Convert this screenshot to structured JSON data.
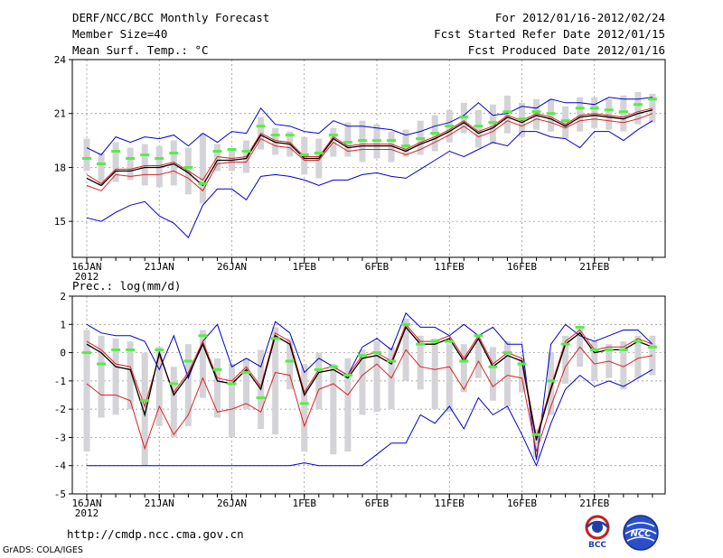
{
  "header": {
    "title": "DERF/NCC/BCC Monthly Forecast",
    "member_size": "Member Size=40",
    "variable": "Mean Surf. Temp.: °C",
    "period": "For 2012/01/16-2012/02/24",
    "refer_date": "Fcst Started Refer Date 2012/01/15",
    "produced_date": "Fcst Produced Date 2012/01/16"
  },
  "footer": {
    "url": "http://cmdp.ncc.cma.gov.cn",
    "credit": "GrADS: COLA/IGES",
    "logo_left_text": "BCC",
    "logo_right_text": "NCC"
  },
  "colors": {
    "envelope": "#0000cc",
    "spread": "#dd2222",
    "ensemble_mean": "#000000",
    "bar": "#d3d3d8",
    "marker": "#55ee44",
    "grid": "#888888"
  },
  "chart_data": [
    {
      "type": "line",
      "id": "temperature",
      "title": "Mean Surf. Temp.: °C",
      "ylim": [
        13.0,
        24.0
      ],
      "yticks": [
        15,
        18,
        21,
        24
      ],
      "xlabels": [
        "16JAN",
        "21JAN",
        "26JAN",
        "1FEB",
        "6FEB",
        "11FEB",
        "16FEB",
        "21FEB"
      ],
      "x_sub": "2012",
      "series": [
        {
          "name": "max",
          "values": [
            19.1,
            18.7,
            19.7,
            19.4,
            19.7,
            19.6,
            19.8,
            19.2,
            19.9,
            19.4,
            20.0,
            19.9,
            21.3,
            20.4,
            20.3,
            20.0,
            19.9,
            20.6,
            20.3,
            20.3,
            20.2,
            20.1,
            19.8,
            20.0,
            20.3,
            20.5,
            20.9,
            21.6,
            20.9,
            21.0,
            21.4,
            21.3,
            21.8,
            21.6,
            21.6,
            21.5,
            21.9,
            21.8,
            21.8,
            21.9
          ]
        },
        {
          "name": "hi",
          "values": [
            17.6,
            17.1,
            17.9,
            17.9,
            18.1,
            18.1,
            18.3,
            17.8,
            17.3,
            18.6,
            18.5,
            18.6,
            19.9,
            19.5,
            19.4,
            18.6,
            18.6,
            19.7,
            19.2,
            19.3,
            19.3,
            19.3,
            19.0,
            19.4,
            19.7,
            20.1,
            20.6,
            20.0,
            20.3,
            20.9,
            20.6,
            21.0,
            20.8,
            20.4,
            20.9,
            21.0,
            20.9,
            20.8,
            21.1,
            21.3
          ]
        },
        {
          "name": "mean",
          "values": [
            17.4,
            17.0,
            17.8,
            17.8,
            18.0,
            18.0,
            18.2,
            17.7,
            17.0,
            18.4,
            18.4,
            18.5,
            19.8,
            19.4,
            19.3,
            18.5,
            18.5,
            19.6,
            19.1,
            19.2,
            19.2,
            19.2,
            18.9,
            19.3,
            19.6,
            20.0,
            20.5,
            19.9,
            20.2,
            20.8,
            20.5,
            20.9,
            20.7,
            20.3,
            20.8,
            20.9,
            20.8,
            20.7,
            21.0,
            21.2
          ]
        },
        {
          "name": "lo",
          "values": [
            17.0,
            16.7,
            17.6,
            17.5,
            17.6,
            17.6,
            17.8,
            17.4,
            16.7,
            18.2,
            18.3,
            18.3,
            19.6,
            19.2,
            19.1,
            18.4,
            18.4,
            19.4,
            18.9,
            19.0,
            19.0,
            19.0,
            18.7,
            19.0,
            19.4,
            19.8,
            20.3,
            19.7,
            20.0,
            20.6,
            20.3,
            20.7,
            20.5,
            20.2,
            20.6,
            20.7,
            20.6,
            20.5,
            20.7,
            21.0
          ]
        },
        {
          "name": "min",
          "values": [
            15.2,
            15.0,
            15.5,
            15.9,
            16.1,
            15.3,
            14.9,
            14.1,
            15.9,
            16.8,
            16.8,
            16.2,
            17.5,
            17.6,
            17.5,
            17.3,
            17.0,
            17.3,
            17.3,
            17.6,
            17.7,
            17.5,
            17.4,
            17.9,
            18.4,
            18.9,
            18.6,
            19.0,
            19.4,
            19.2,
            20.0,
            20.0,
            19.7,
            19.6,
            19.1,
            20.0,
            20.0,
            19.5,
            20.1,
            20.6
          ]
        }
      ],
      "bars": [
        [
          17.8,
          19.6
        ],
        [
          17.0,
          18.8
        ],
        [
          17.2,
          19.4
        ],
        [
          17.3,
          19.1
        ],
        [
          17.0,
          19.3
        ],
        [
          16.9,
          19.2
        ],
        [
          17.0,
          19.5
        ],
        [
          16.5,
          19.1
        ],
        [
          16.0,
          19.9
        ],
        [
          17.8,
          19.3
        ],
        [
          17.8,
          19.0
        ],
        [
          17.7,
          19.5
        ],
        [
          19.0,
          20.8
        ],
        [
          18.7,
          20.2
        ],
        [
          18.6,
          20.0
        ],
        [
          17.6,
          19.7
        ],
        [
          17.4,
          19.6
        ],
        [
          18.6,
          20.2
        ],
        [
          18.6,
          20.5
        ],
        [
          18.3,
          20.6
        ],
        [
          18.5,
          20.4
        ],
        [
          18.3,
          20.0
        ],
        [
          18.6,
          20.1
        ],
        [
          18.7,
          20.6
        ],
        [
          18.9,
          20.9
        ],
        [
          19.4,
          21.2
        ],
        [
          19.9,
          21.6
        ],
        [
          19.1,
          21.2
        ],
        [
          19.3,
          21.5
        ],
        [
          19.9,
          22.0
        ],
        [
          19.7,
          21.6
        ],
        [
          20.1,
          21.8
        ],
        [
          20.0,
          21.8
        ],
        [
          19.6,
          21.4
        ],
        [
          20.0,
          21.9
        ],
        [
          20.2,
          21.9
        ],
        [
          20.1,
          21.8
        ],
        [
          20.0,
          22.0
        ],
        [
          20.4,
          22.2
        ],
        [
          20.5,
          22.1
        ]
      ],
      "markers": [
        18.5,
        18.2,
        18.9,
        18.5,
        18.7,
        18.5,
        18.8,
        18.0,
        17.1,
        18.9,
        19.0,
        18.9,
        20.3,
        19.8,
        19.8,
        18.7,
        18.8,
        19.8,
        19.4,
        19.5,
        19.5,
        19.5,
        19.2,
        19.6,
        19.9,
        20.3,
        20.8,
        20.3,
        20.5,
        21.1,
        20.7,
        21.1,
        21.0,
        20.6,
        21.3,
        21.3,
        21.2,
        21.1,
        21.5,
        21.8
      ]
    },
    {
      "type": "line",
      "id": "precipitation",
      "title": "Prec.: log(mm/d)",
      "ylim": [
        -5.0,
        2.0
      ],
      "yticks": [
        -5,
        -4,
        -3,
        -2,
        -1,
        0,
        1,
        2
      ],
      "xlabels": [
        "16JAN",
        "21JAN",
        "26JAN",
        "1FEB",
        "6FEB",
        "11FEB",
        "16FEB",
        "21FEB"
      ],
      "x_sub": "2012",
      "series": [
        {
          "name": "max",
          "values": [
            1.0,
            0.7,
            0.6,
            0.6,
            0.4,
            -0.6,
            0.6,
            -0.9,
            0.4,
            1.0,
            -0.5,
            -0.2,
            -0.5,
            1.1,
            0.7,
            -0.7,
            -0.2,
            -0.5,
            -0.8,
            0.2,
            0.5,
            0.1,
            1.4,
            0.9,
            0.9,
            0.6,
            1.0,
            0.6,
            0.9,
            0.3,
            0.3,
            -3.8,
            0.3,
            1.0,
            0.6,
            0.4,
            0.6,
            0.8,
            0.8,
            0.3
          ]
        },
        {
          "name": "hi",
          "values": [
            0.4,
            0.1,
            -0.4,
            -0.5,
            -1.9,
            -0.1,
            -1.4,
            -0.7,
            0.4,
            -0.9,
            -1.0,
            -0.5,
            -1.2,
            0.7,
            0.4,
            -1.4,
            -0.6,
            -0.5,
            -0.8,
            -0.1,
            0.0,
            -0.3,
            1.0,
            0.4,
            0.4,
            0.6,
            -0.2,
            0.6,
            -0.4,
            0.0,
            -0.2,
            -3.0,
            -1.2,
            0.4,
            0.8,
            0.1,
            0.2,
            0.2,
            0.5,
            0.3
          ]
        },
        {
          "name": "mean",
          "values": [
            0.3,
            0.0,
            -0.5,
            -0.6,
            -2.2,
            0.0,
            -1.5,
            -0.8,
            0.3,
            -1.0,
            -1.1,
            -0.6,
            -1.3,
            0.6,
            0.3,
            -1.5,
            -0.7,
            -0.6,
            -0.9,
            -0.2,
            -0.1,
            -0.4,
            0.9,
            0.3,
            0.3,
            0.5,
            -0.3,
            0.5,
            -0.5,
            -0.1,
            -0.3,
            -3.1,
            -1.3,
            0.3,
            0.7,
            0.0,
            0.1,
            0.1,
            0.4,
            0.2
          ]
        },
        {
          "name": "lo",
          "values": [
            -1.1,
            -1.5,
            -1.5,
            -1.7,
            -3.4,
            -1.9,
            -2.9,
            -2.2,
            -0.9,
            -2.1,
            -2.0,
            -1.8,
            -2.1,
            -0.7,
            -0.8,
            -2.6,
            -1.3,
            -1.1,
            -1.5,
            -0.8,
            -0.4,
            -0.9,
            0.1,
            -0.5,
            -0.6,
            -0.5,
            -1.3,
            -0.3,
            -1.2,
            -0.8,
            -0.9,
            -3.5,
            -1.9,
            -0.5,
            0.2,
            -0.4,
            -0.3,
            -0.5,
            -0.2,
            -0.1
          ]
        },
        {
          "name": "min",
          "values": [
            -4.0,
            -4.0,
            -4.0,
            -4.0,
            -4.0,
            -4.0,
            -4.0,
            -4.0,
            -4.0,
            -4.0,
            -4.0,
            -4.0,
            -4.0,
            -4.0,
            -4.0,
            -3.9,
            -4.0,
            -4.0,
            -4.0,
            -4.0,
            -3.6,
            -3.2,
            -3.2,
            -2.2,
            -2.5,
            -1.9,
            -2.7,
            -1.6,
            -2.2,
            -1.9,
            -2.9,
            -4.0,
            -2.5,
            -1.3,
            -0.8,
            -1.2,
            -1.0,
            -1.2,
            -0.9,
            -0.6
          ]
        }
      ],
      "bars": [
        [
          -3.5,
          0.8
        ],
        [
          -2.3,
          0.6
        ],
        [
          -2.2,
          0.5
        ],
        [
          -2.0,
          0.4
        ],
        [
          -4.0,
          0.0
        ],
        [
          -2.6,
          0.2
        ],
        [
          -3.0,
          -0.5
        ],
        [
          -2.6,
          0.3
        ],
        [
          -1.6,
          0.8
        ],
        [
          -2.3,
          -0.2
        ],
        [
          -3.0,
          -0.4
        ],
        [
          -2.0,
          -0.2
        ],
        [
          -2.7,
          0.1
        ],
        [
          -2.9,
          0.9
        ],
        [
          -1.3,
          0.5
        ],
        [
          -3.5,
          -0.4
        ],
        [
          -2.0,
          0.0
        ],
        [
          -3.6,
          -0.4
        ],
        [
          -3.5,
          -0.2
        ],
        [
          -2.2,
          0.1
        ],
        [
          -2.1,
          0.4
        ],
        [
          -2.0,
          0.2
        ],
        [
          -1.0,
          1.2
        ],
        [
          -1.3,
          0.6
        ],
        [
          -2.0,
          0.5
        ],
        [
          -2.1,
          0.3
        ],
        [
          -1.4,
          0.3
        ],
        [
          -0.9,
          0.5
        ],
        [
          -1.7,
          0.2
        ],
        [
          -1.9,
          0.4
        ],
        [
          -1.4,
          -0.2
        ],
        [
          -3.7,
          -2.7
        ],
        [
          -2.2,
          0.0
        ],
        [
          -1.1,
          0.6
        ],
        [
          -0.5,
          0.9
        ],
        [
          -1.0,
          0.4
        ],
        [
          -0.9,
          0.3
        ],
        [
          -1.3,
          0.4
        ],
        [
          -0.9,
          0.6
        ],
        [
          -0.8,
          0.6
        ]
      ],
      "markers": [
        0.0,
        -0.4,
        0.1,
        0.1,
        -1.7,
        0.1,
        -1.1,
        -0.3,
        0.6,
        -0.6,
        -1.1,
        -0.7,
        -1.6,
        0.5,
        -0.3,
        -1.8,
        -0.6,
        -0.5,
        -0.8,
        -0.1,
        0.0,
        -0.3,
        1.0,
        0.3,
        0.4,
        0.4,
        -0.3,
        0.6,
        -0.5,
        0.0,
        -0.4,
        -2.9,
        -1.0,
        0.3,
        0.9,
        0.1,
        0.1,
        0.1,
        0.4,
        0.2
      ]
    }
  ]
}
